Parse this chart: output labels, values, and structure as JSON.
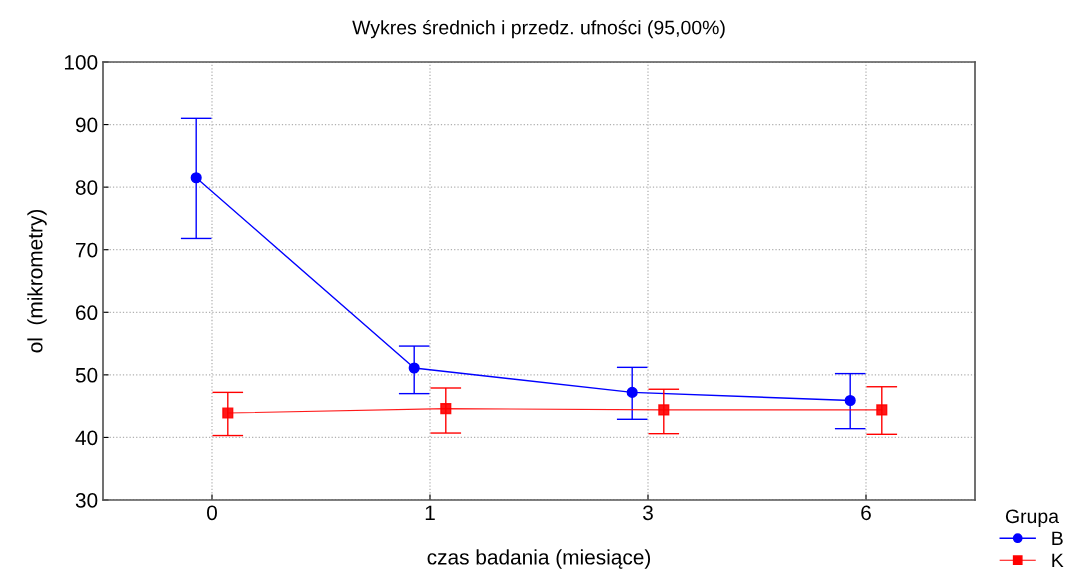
{
  "chart_data": {
    "type": "line",
    "title": "Wykres średnich i przedz. ufności (95,00%)",
    "xlabel": "czas badania (miesiące)",
    "ylabel": "ol  (mikrometry)",
    "legend_title": "Grupa",
    "categories": [
      "0",
      "1",
      "3",
      "6"
    ],
    "series": [
      {
        "name": "B",
        "color": "#0000ff",
        "marker": "circle",
        "values": [
          81.5,
          51.1,
          47.2,
          45.9
        ],
        "errors": [
          [
            71.8,
            91.0
          ],
          [
            47.0,
            54.6
          ],
          [
            42.9,
            51.2
          ],
          [
            41.4,
            50.2
          ]
        ]
      },
      {
        "name": "K",
        "color": "#ff0000",
        "marker": "square",
        "values": [
          43.9,
          44.6,
          44.4,
          44.4
        ],
        "errors": [
          [
            40.3,
            47.2
          ],
          [
            40.7,
            47.9
          ],
          [
            40.6,
            47.7
          ],
          [
            40.5,
            48.1
          ]
        ]
      }
    ],
    "ylim": [
      30,
      100
    ],
    "yticks": [
      30,
      40,
      50,
      60,
      70,
      80,
      90,
      100
    ],
    "grid": true,
    "legend": "bottom right",
    "line_style": "solid"
  }
}
